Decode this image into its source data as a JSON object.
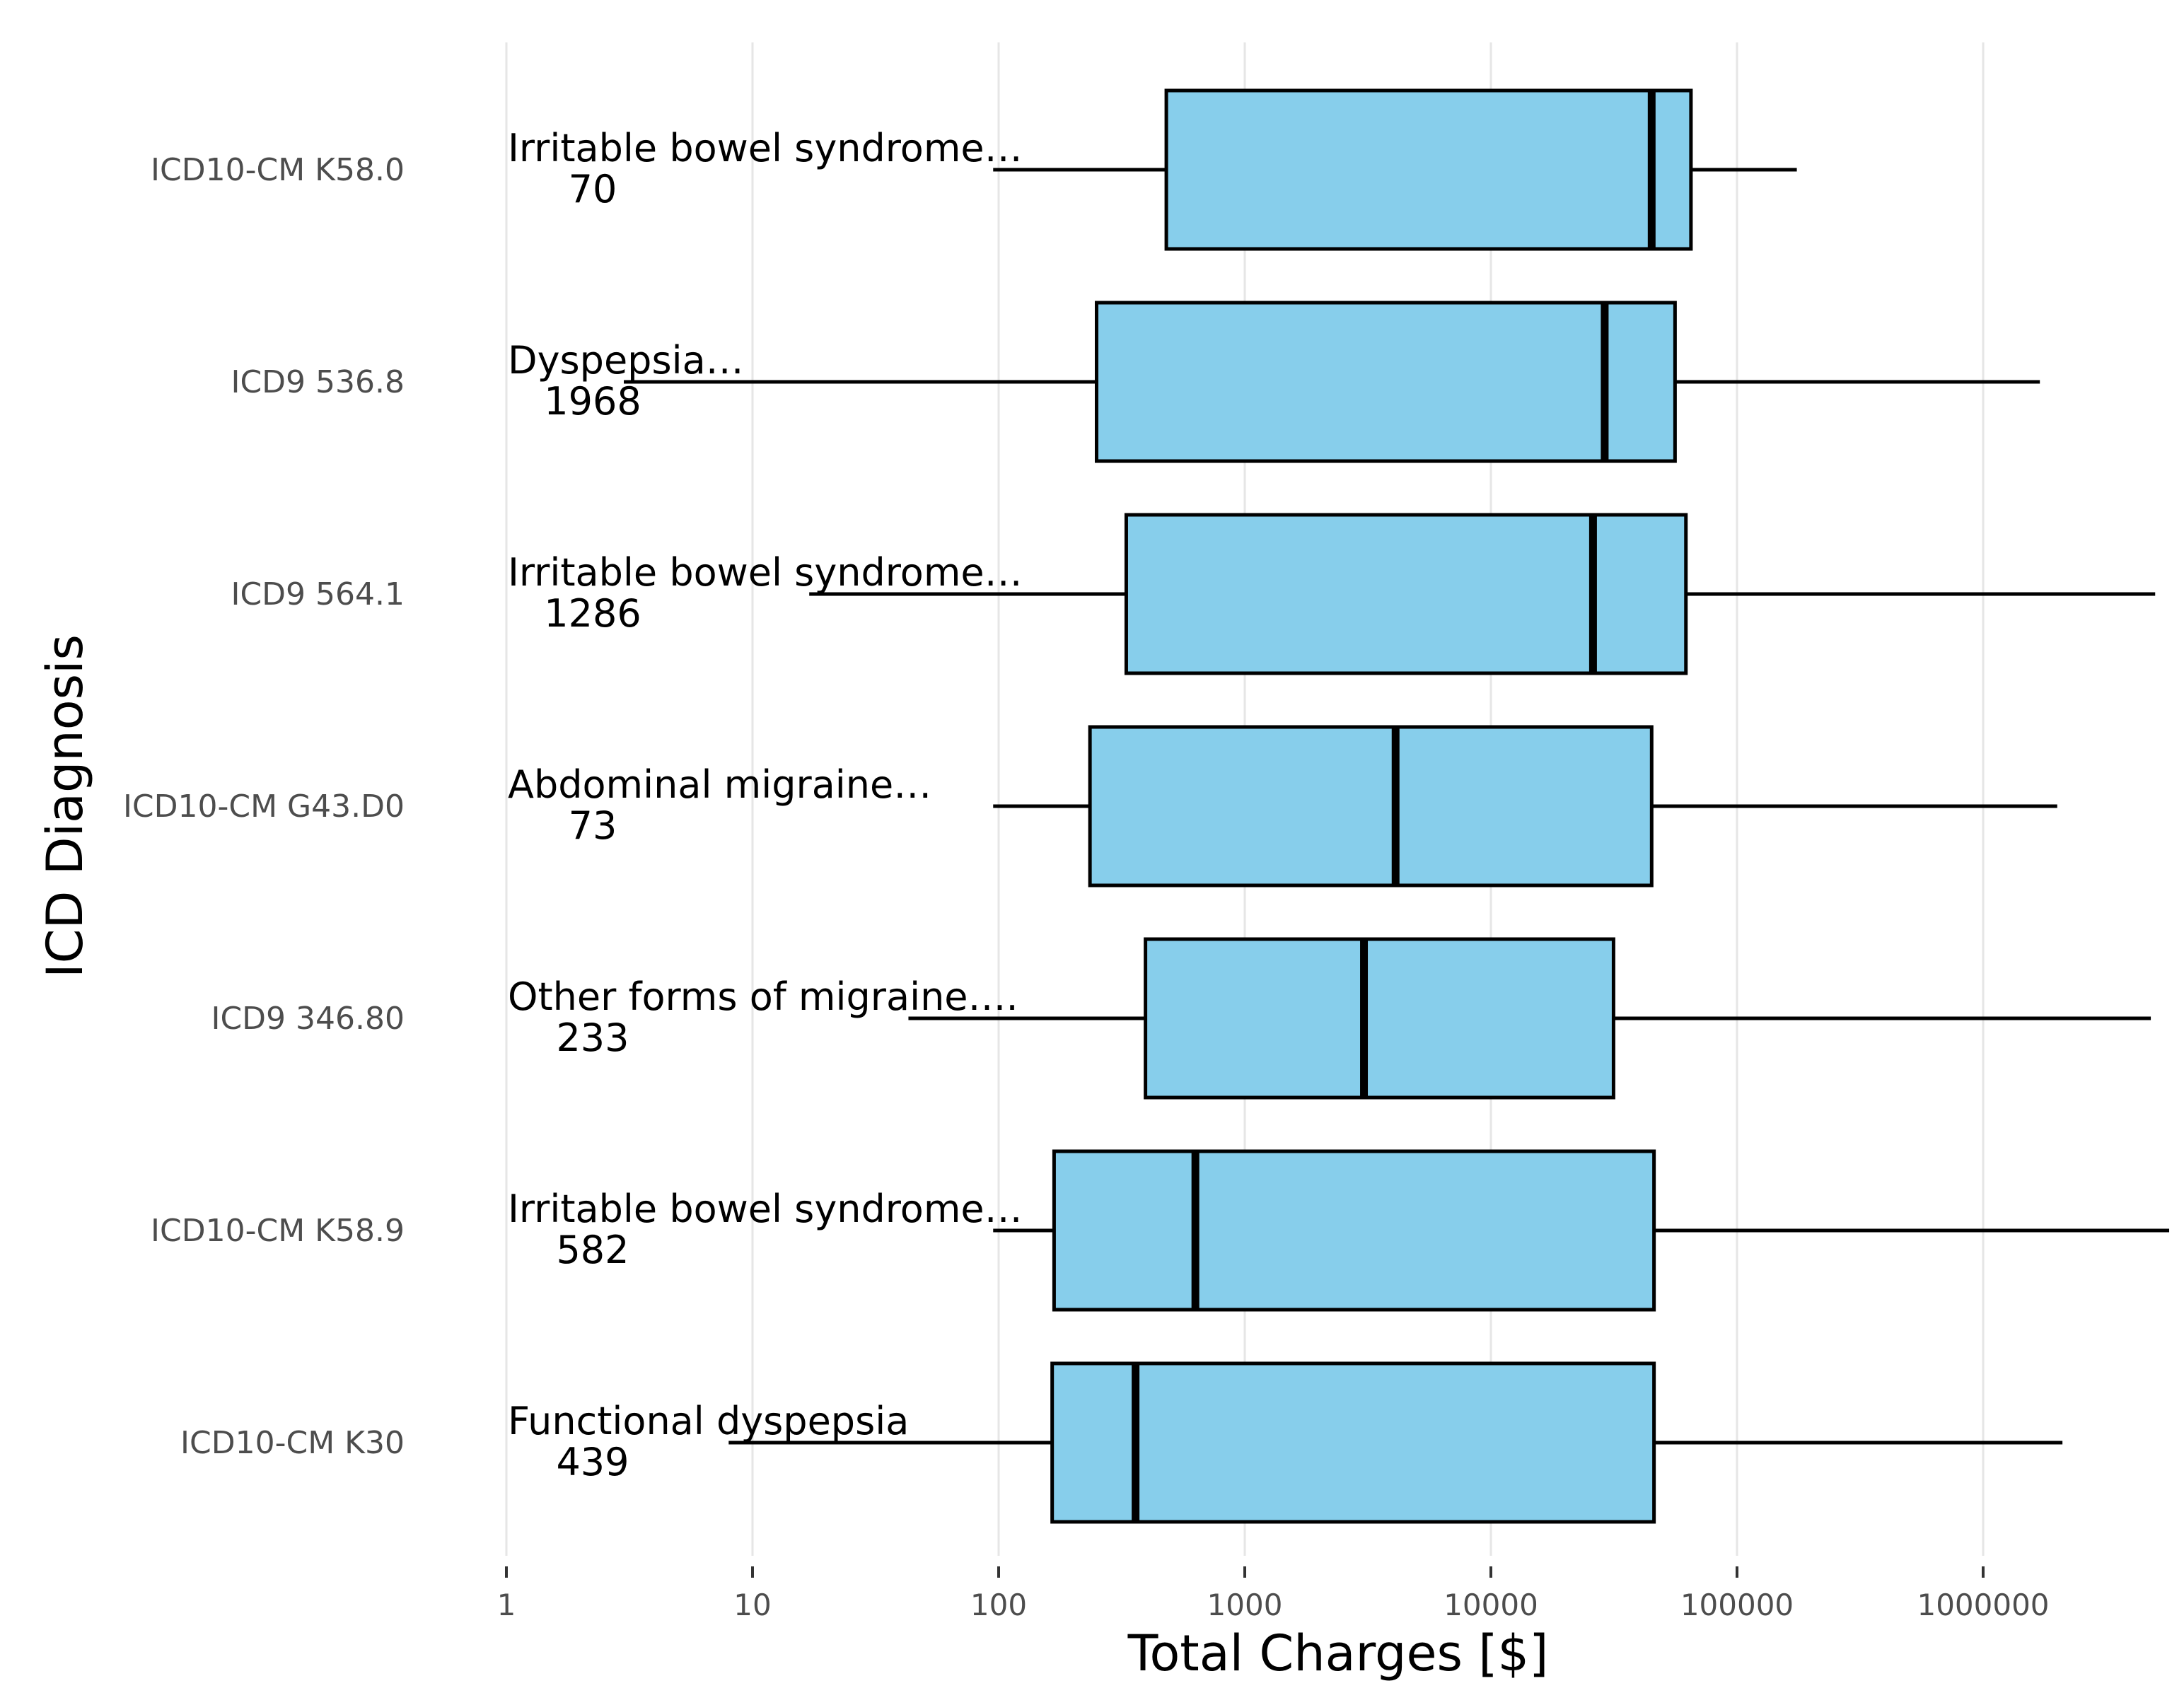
{
  "chart_data": {
    "type": "boxplot",
    "orientation": "horizontal",
    "xlabel": "Total Charges [$]",
    "ylabel": "ICD Diagnosis",
    "x_scale": "log10",
    "xlim": [
      1,
      6000000
    ],
    "x_ticks": [
      "1",
      "10",
      "100",
      "1000",
      "10000",
      "100000",
      "1000000"
    ],
    "grid": "vertical major gridlines",
    "box_fill": "#87ceeb",
    "box_stroke": "#000000",
    "categories": [
      {
        "code": "ICD10-CM K58.0",
        "description": "Irritable bowel syndrome…",
        "count": "70",
        "whisker_low": 95,
        "q1": 480,
        "median": 45000,
        "q3": 65000,
        "whisker_high": 175000
      },
      {
        "code": "ICD9 536.8",
        "description": "Dyspepsia…",
        "count": "1968",
        "whisker_low": 3,
        "q1": 250,
        "median": 29000,
        "q3": 56000,
        "whisker_high": 1700000
      },
      {
        "code": "ICD9 564.1",
        "description": "Irritable bowel syndrome…",
        "count": "1286",
        "whisker_low": 17,
        "q1": 330,
        "median": 26000,
        "q3": 62000,
        "whisker_high": 5000000
      },
      {
        "code": "ICD10-CM G43.D0",
        "description": "Abdominal migraine…",
        "count": "73",
        "whisker_low": 95,
        "q1": 235,
        "median": 4100,
        "q3": 45000,
        "whisker_high": 2000000
      },
      {
        "code": "ICD9 346.80",
        "description": "Other forms of migraine….",
        "count": "233",
        "whisker_low": 43,
        "q1": 395,
        "median": 3050,
        "q3": 31500,
        "whisker_high": 4800000
      },
      {
        "code": "ICD10-CM K58.9",
        "description": "Irritable bowel syndrome…",
        "count": "582",
        "whisker_low": 95,
        "q1": 168,
        "median": 630,
        "q3": 46000,
        "whisker_high": 5700000
      },
      {
        "code": "ICD10-CM K30",
        "description": "Functional dyspepsia",
        "count": "439",
        "whisker_low": 8,
        "q1": 165,
        "median": 360,
        "q3": 46000,
        "whisker_high": 2100000
      }
    ]
  }
}
